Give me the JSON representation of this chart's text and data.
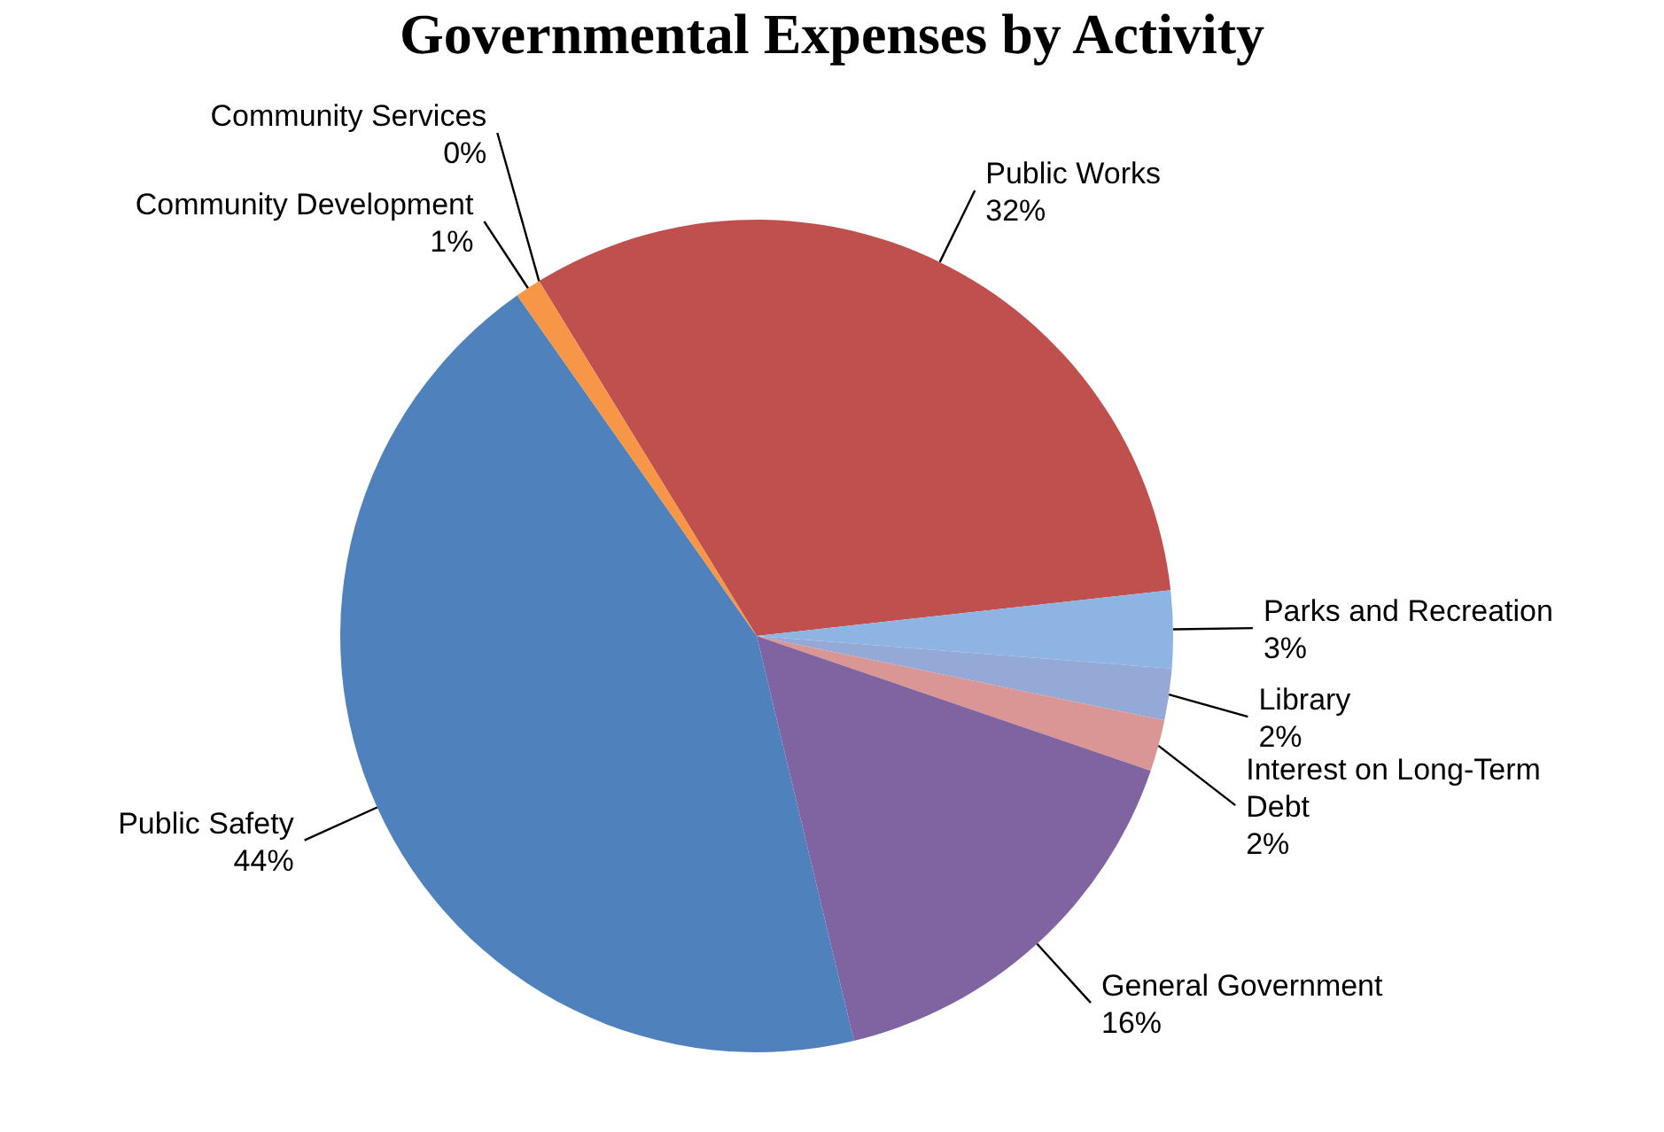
{
  "chart_data": {
    "type": "pie",
    "title": "Governmental Expenses by Activity",
    "categories": [
      "Public Works",
      "Parks and Recreation",
      "Library",
      "Interest on Long-Term Debt",
      "General Government",
      "Public Safety",
      "Community Development",
      "Community Services"
    ],
    "values": [
      32,
      3,
      2,
      2,
      16,
      44,
      1,
      0
    ],
    "value_labels": [
      "32%",
      "3%",
      "2%",
      "2%",
      "16%",
      "44%",
      "1%",
      "0%"
    ],
    "colors": [
      "#c0504d",
      "#8eb4e3",
      "#95a9d6",
      "#d99694",
      "#8064a2",
      "#4f81bd",
      "#f79646",
      "#4bacc6"
    ],
    "legend": false
  }
}
